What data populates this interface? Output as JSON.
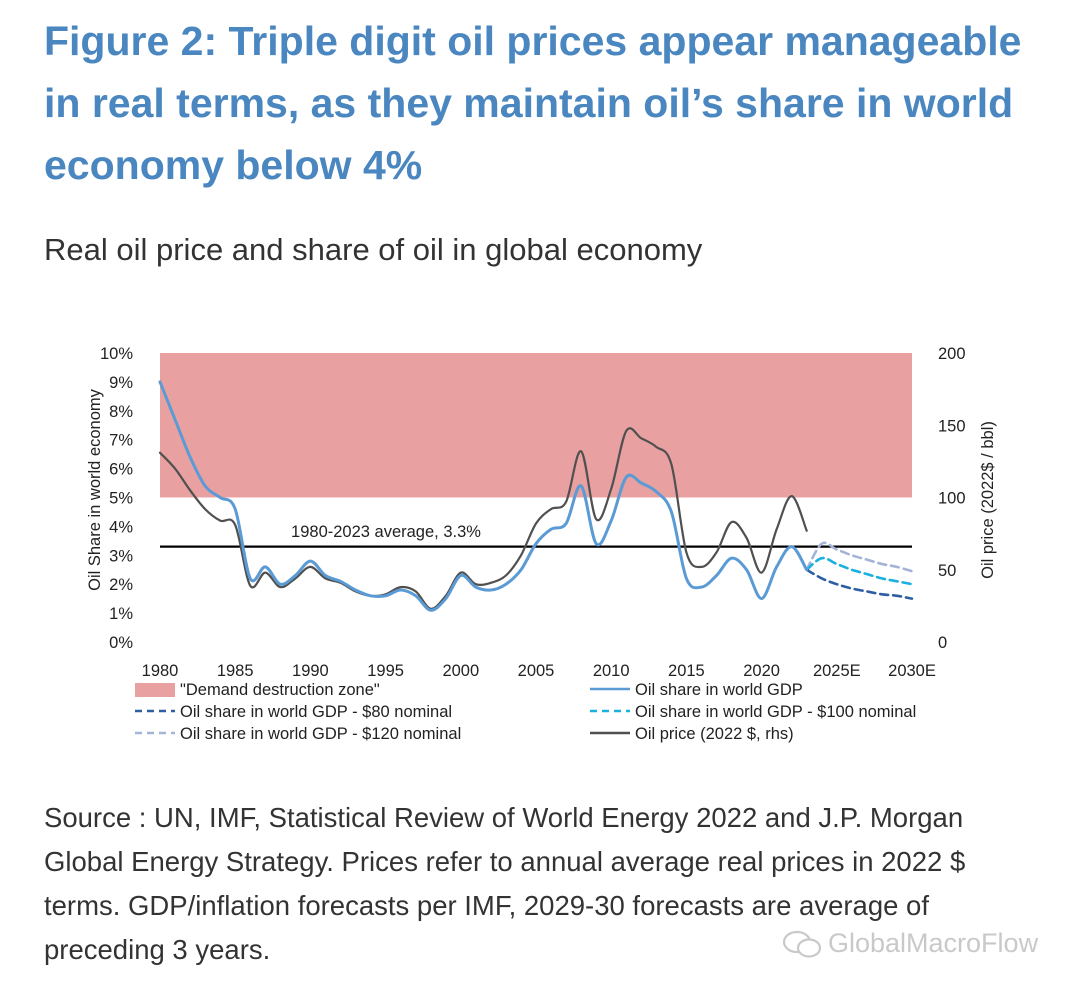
{
  "header": {
    "title": "Figure 2: Triple digit oil prices appear manageable in real terms, as they maintain oil’s share in world economy below 4%",
    "subtitle": "Real oil price and share of oil in global economy"
  },
  "source": "Source : UN, IMF, Statistical Review of World Energy 2022 and J.P. Morgan Global Energy Strategy. Prices refer to annual average real prices in 2022 $ terms. GDP/inflation forecasts per IMF, 2029-30 forecasts are average of preceding 3 years.",
  "watermark": "GlobalMacroFlow",
  "colors": {
    "title": "#4a86bf",
    "zone": "#e8a0a0",
    "share": "#5b9bd5",
    "share80": "#2e5fa3",
    "share100": "#1ab0e0",
    "share120": "#a4b4d6",
    "price": "#505050",
    "average": "#000000"
  },
  "chart_data": {
    "type": "line",
    "xlim": [
      1980,
      2030
    ],
    "ylim_left": [
      0,
      10
    ],
    "ylim_right": [
      0,
      200
    ],
    "ylabel": "Oil Share in world economy",
    "ylabel_right": "Oil price (2022$ / bbl)",
    "x_ticks": [
      "1980",
      "1985",
      "1990",
      "1995",
      "2000",
      "2005",
      "2010",
      "2015",
      "2020",
      "2025E",
      "2030E"
    ],
    "y_ticks_left": [
      "0%",
      "1%",
      "2%",
      "3%",
      "4%",
      "5%",
      "6%",
      "7%",
      "8%",
      "9%",
      "10%"
    ],
    "y_ticks_right": [
      "0",
      "50",
      "100",
      "150",
      "200"
    ],
    "zone": {
      "label": "\"Demand destruction zone\"",
      "from": 5,
      "to": 10
    },
    "average": {
      "label": "1980-2023 average, 3.3%",
      "value": 3.3
    },
    "series": [
      {
        "name": "Oil share in world GDP",
        "axis": "left",
        "points": [
          [
            1980,
            9.0
          ],
          [
            1981,
            7.7
          ],
          [
            1982,
            6.4
          ],
          [
            1983,
            5.4
          ],
          [
            1984,
            5.0
          ],
          [
            1985,
            4.6
          ],
          [
            1986,
            2.2
          ],
          [
            1987,
            2.6
          ],
          [
            1988,
            2.0
          ],
          [
            1989,
            2.3
          ],
          [
            1990,
            2.8
          ],
          [
            1991,
            2.3
          ],
          [
            1992,
            2.1
          ],
          [
            1993,
            1.8
          ],
          [
            1994,
            1.6
          ],
          [
            1995,
            1.6
          ],
          [
            1996,
            1.8
          ],
          [
            1997,
            1.6
          ],
          [
            1998,
            1.1
          ],
          [
            1999,
            1.5
          ],
          [
            2000,
            2.3
          ],
          [
            2001,
            1.9
          ],
          [
            2002,
            1.8
          ],
          [
            2003,
            2.0
          ],
          [
            2004,
            2.5
          ],
          [
            2005,
            3.4
          ],
          [
            2006,
            3.9
          ],
          [
            2007,
            4.1
          ],
          [
            2008,
            5.4
          ],
          [
            2009,
            3.4
          ],
          [
            2010,
            4.2
          ],
          [
            2011,
            5.7
          ],
          [
            2012,
            5.5
          ],
          [
            2013,
            5.2
          ],
          [
            2014,
            4.5
          ],
          [
            2015,
            2.2
          ],
          [
            2016,
            1.9
          ],
          [
            2017,
            2.3
          ],
          [
            2018,
            2.9
          ],
          [
            2019,
            2.5
          ],
          [
            2020,
            1.5
          ],
          [
            2021,
            2.6
          ],
          [
            2022,
            3.3
          ],
          [
            2023,
            2.5
          ]
        ]
      },
      {
        "name": "Oil share in world GDP - $80 nominal",
        "axis": "left",
        "style": "dashed",
        "points": [
          [
            2023,
            2.5
          ],
          [
            2024,
            2.2
          ],
          [
            2025,
            2.0
          ],
          [
            2026,
            1.85
          ],
          [
            2027,
            1.75
          ],
          [
            2028,
            1.65
          ],
          [
            2029,
            1.6
          ],
          [
            2030,
            1.5
          ]
        ]
      },
      {
        "name": "Oil share in world GDP - $100 nominal",
        "axis": "left",
        "style": "dashed",
        "points": [
          [
            2023,
            2.5
          ],
          [
            2024,
            2.9
          ],
          [
            2025,
            2.7
          ],
          [
            2026,
            2.5
          ],
          [
            2027,
            2.35
          ],
          [
            2028,
            2.2
          ],
          [
            2029,
            2.1
          ],
          [
            2030,
            2.0
          ]
        ]
      },
      {
        "name": "Oil share in world GDP - $120 nominal",
        "axis": "left",
        "style": "dashed",
        "points": [
          [
            2023,
            2.5
          ],
          [
            2024,
            3.4
          ],
          [
            2025,
            3.2
          ],
          [
            2026,
            3.0
          ],
          [
            2027,
            2.85
          ],
          [
            2028,
            2.7
          ],
          [
            2029,
            2.6
          ],
          [
            2030,
            2.45
          ]
        ]
      },
      {
        "name": "Oil price (2022 $, rhs)",
        "axis": "right",
        "points": [
          [
            1980,
            131
          ],
          [
            1981,
            120
          ],
          [
            1982,
            105
          ],
          [
            1983,
            92
          ],
          [
            1984,
            84
          ],
          [
            1985,
            81
          ],
          [
            1986,
            39
          ],
          [
            1987,
            48
          ],
          [
            1988,
            38
          ],
          [
            1989,
            44
          ],
          [
            1990,
            52
          ],
          [
            1991,
            44
          ],
          [
            1992,
            41
          ],
          [
            1993,
            35
          ],
          [
            1994,
            32
          ],
          [
            1995,
            33
          ],
          [
            1996,
            38
          ],
          [
            1997,
            35
          ],
          [
            1998,
            23
          ],
          [
            1999,
            32
          ],
          [
            2000,
            48
          ],
          [
            2001,
            40
          ],
          [
            2002,
            41
          ],
          [
            2003,
            46
          ],
          [
            2004,
            60
          ],
          [
            2005,
            82
          ],
          [
            2006,
            92
          ],
          [
            2007,
            97
          ],
          [
            2008,
            132
          ],
          [
            2009,
            85
          ],
          [
            2010,
            106
          ],
          [
            2011,
            146
          ],
          [
            2012,
            141
          ],
          [
            2013,
            135
          ],
          [
            2014,
            123
          ],
          [
            2015,
            62
          ],
          [
            2016,
            52
          ],
          [
            2017,
            62
          ],
          [
            2018,
            83
          ],
          [
            2019,
            72
          ],
          [
            2020,
            48
          ],
          [
            2021,
            78
          ],
          [
            2022,
            101
          ],
          [
            2023,
            77
          ]
        ]
      }
    ],
    "legend": {
      "placement": "below",
      "entries": [
        {
          "label": "\"Demand destruction zone\"",
          "kind": "box",
          "colorKey": "zone"
        },
        {
          "label": "Oil share in world GDP",
          "kind": "line",
          "colorKey": "share"
        },
        {
          "label": "Oil share in world GDP - $80 nominal",
          "kind": "dash",
          "colorKey": "share80"
        },
        {
          "label": "Oil share in world GDP - $100 nominal",
          "kind": "dash",
          "colorKey": "share100"
        },
        {
          "label": "Oil share in world GDP - $120 nominal",
          "kind": "dash",
          "colorKey": "share120"
        },
        {
          "label": "Oil price (2022 $, rhs)",
          "kind": "line",
          "colorKey": "price"
        }
      ]
    }
  }
}
